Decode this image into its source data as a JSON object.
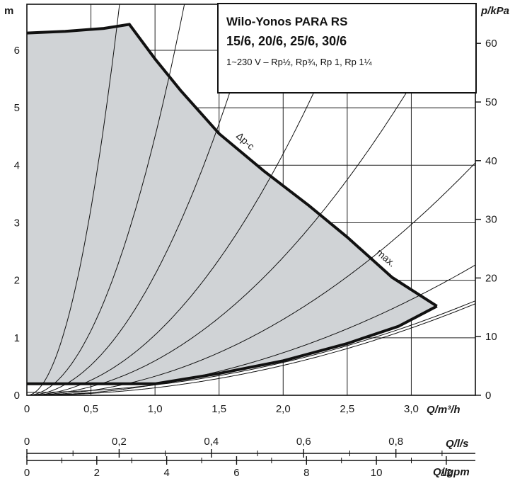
{
  "chart_data": {
    "type": "line",
    "title": "Wilo-Yonos PARA RS",
    "subtitle": "15/6, 20/6, 25/6, 30/6",
    "spec_line": "1~230 V – Rp½, Rp¾, Rp 1, Rp 1¼",
    "ylabel_left": "m",
    "ylabel_right": "p/kPa",
    "xlabel_m3h": "Q/m³/h",
    "xlabel_ls": "Q/l/s",
    "xlabel_lgpm": "Q/Igpm",
    "xlim": [
      0,
      3.5
    ],
    "ylim": [
      0,
      6.8
    ],
    "grid": true,
    "x_ticks": [
      "0",
      "0,5",
      "1,0",
      "1,5",
      "2,0",
      "2,5",
      "3,0"
    ],
    "x_tick_values": [
      0,
      0.5,
      1.0,
      1.5,
      2.0,
      2.5,
      3.0
    ],
    "y_ticks_left": [
      "0",
      "1",
      "2",
      "3",
      "4",
      "5",
      "6"
    ],
    "y_tick_values_left": [
      0,
      1,
      2,
      3,
      4,
      5,
      6
    ],
    "y_ticks_right": [
      "0",
      "10",
      "20",
      "30",
      "40",
      "50",
      "60"
    ],
    "y_tick_values_right_m": [
      0,
      1.02,
      2.04,
      3.06,
      4.08,
      5.1,
      6.12
    ],
    "x_ticks_ls": [
      "0",
      "0,2",
      "0,4",
      "0,6",
      "0,8"
    ],
    "x_tick_values_ls": [
      0,
      0.2,
      0.4,
      0.6,
      0.8
    ],
    "x_ticks_lgpm": [
      "0",
      "2",
      "4",
      "6",
      "8",
      "10",
      "12"
    ],
    "x_tick_values_lgpm": [
      0,
      2,
      4,
      6,
      8,
      10,
      12
    ],
    "curve_labels": [
      "Δp-c",
      "max."
    ],
    "series": [
      {
        "x": [
          0,
          0.3,
          0.6,
          0.8,
          1.0,
          1.2,
          1.5,
          1.85,
          2.2,
          2.5,
          2.85,
          3.2
        ],
        "y": [
          6.3,
          6.33,
          6.38,
          6.45,
          5.85,
          5.3,
          4.55,
          3.9,
          3.3,
          2.75,
          2.05,
          1.55
        ]
      },
      {
        "x": [
          0,
          0.5,
          1.0,
          1.5,
          2.0,
          2.5,
          2.9,
          3.2
        ],
        "y": [
          0.2,
          0.2,
          0.2,
          0.38,
          0.6,
          0.9,
          1.2,
          1.55
        ]
      }
    ],
    "system_curves_k": [
      13,
      4.5,
      2.1,
      1.05,
      0.6,
      0.33,
      0.185,
      0.13
    ]
  }
}
